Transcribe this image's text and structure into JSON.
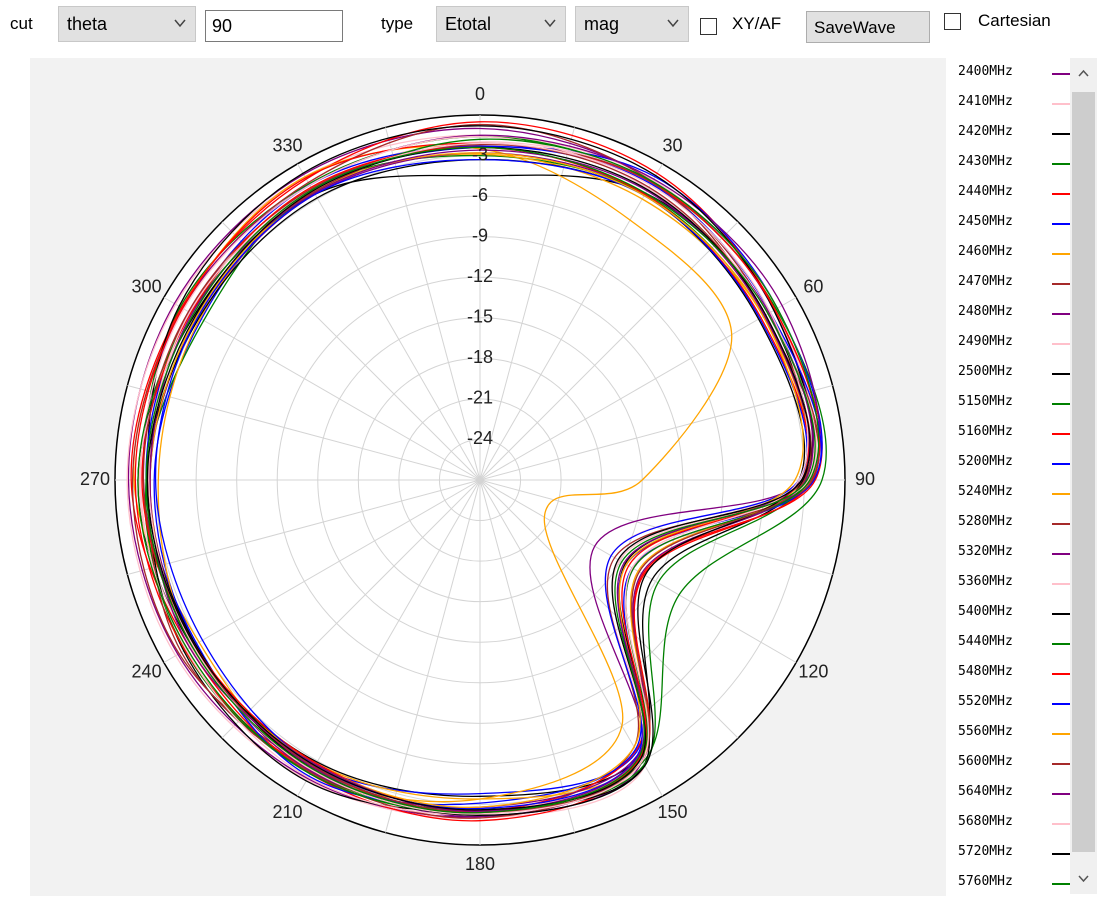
{
  "toolbar": {
    "cut_label": "cut",
    "cut_value": "theta",
    "angle_value": "90",
    "type_label": "type",
    "type_value": "Etotal",
    "scale_value": "mag",
    "xyaf_label": "XY/AF",
    "xyaf_checked": false,
    "savewave_label": "SaveWave",
    "cartesian_label": "Cartesian",
    "cartesian_checked": false
  },
  "colors": {
    "grid": "#d4d4d4",
    "background": "#f2f2f2",
    "plot_area": "#ffffff"
  },
  "chart_data": {
    "type": "polar-line",
    "title": "",
    "angle_ticks": [
      "0",
      "30",
      "60",
      "90",
      "120",
      "150",
      "180",
      "210",
      "240",
      "270",
      "300",
      "330"
    ],
    "radial_ticks": [
      "-3",
      "-6",
      "-9",
      "-12",
      "-15",
      "-18",
      "-21",
      "-24"
    ],
    "r_range": [
      -27,
      0
    ],
    "grid": true,
    "legend_position": "right",
    "series": [
      {
        "name": "2400MHz",
        "color": "#800080",
        "values": [
          -1.0,
          -1.4,
          -1.9,
          -3.2,
          -17.2,
          -3.0,
          -2.1,
          -1.5,
          -1.2,
          -1.0,
          -0.9,
          -0.9
        ]
      },
      {
        "name": "2410MHz",
        "color": "#ffc0cb",
        "values": [
          -1.5,
          -1.4,
          -1.8,
          -3.0,
          -15.8,
          -2.6,
          -2.0,
          -1.4,
          -1.0,
          -0.9,
          -1.0,
          -1.1
        ]
      },
      {
        "name": "2420MHz",
        "color": "#000000",
        "values": [
          -4.5,
          -2.5,
          -2.4,
          -3.1,
          -12.3,
          -3.4,
          -3.6,
          -2.9,
          -2.4,
          -1.7,
          -2.6,
          -2.6
        ]
      },
      {
        "name": "2430MHz",
        "color": "#008000",
        "values": [
          -1.6,
          -1.6,
          -1.7,
          -1.7,
          -10.0,
          -2.9,
          -2.6,
          -2.0,
          -1.8,
          -2.1,
          -1.4,
          -1.7
        ]
      },
      {
        "name": "2440MHz",
        "color": "#ff0000",
        "values": [
          -0.5,
          -0.8,
          -1.8,
          -2.2,
          -13.1,
          -3.0,
          -1.8,
          -1.9,
          -2.2,
          -1.2,
          -1.5,
          -1.3
        ]
      },
      {
        "name": "2450MHz",
        "color": "#0000ff",
        "values": [
          -2.4,
          -1.1,
          -1.6,
          -2.3,
          -14.0,
          -3.8,
          -3.8,
          -2.6,
          -2.7,
          -2.9,
          -3.2,
          -2.2
        ]
      },
      {
        "name": "2460MHz",
        "color": "#ffa500",
        "values": [
          -2.5,
          -4.8,
          -5.5,
          -15.0,
          -21.5,
          -6.0,
          -3.4,
          -2.1,
          -3.0,
          -1.4,
          -1.6,
          -1.1
        ]
      },
      {
        "name": "2470MHz",
        "color": "#a52a2a",
        "values": [
          -0.7,
          -1.5,
          -2.4,
          -2.5,
          -15.5,
          -4.2,
          -2.3,
          -2.4,
          -1.3,
          -1.3,
          -1.6,
          -1.6
        ]
      },
      {
        "name": "2480MHz",
        "color": "#800080",
        "values": [
          -1.5,
          -1.3,
          -1.2,
          -2.6,
          -13.9,
          -3.2,
          -2.1,
          -2.4,
          -2.6,
          -2.1,
          -1.6,
          -1.8
        ]
      },
      {
        "name": "2490MHz",
        "color": "#ffc0cb",
        "values": [
          -2.0,
          -1.5,
          -1.6,
          -2.6,
          -13.9,
          -3.4,
          -2.6,
          -2.6,
          -2.3,
          -1.8,
          -2.5,
          -2.1
        ]
      },
      {
        "name": "2500MHz",
        "color": "#000000",
        "values": [
          -0.8,
          -1.0,
          -1.9,
          -3.1,
          -14.6,
          -2.7,
          -2.6,
          -1.3,
          -1.7,
          -2.4,
          -1.3,
          -0.8
        ]
      },
      {
        "name": "5150MHz",
        "color": "#008000",
        "values": [
          -3.0,
          -2.6,
          -2.8,
          -2.9,
          -11.8,
          -2.7,
          -2.5,
          -1.9,
          -1.8,
          -2.3,
          -3.4,
          -2.2
        ]
      },
      {
        "name": "5160MHz",
        "color": "#ff0000",
        "values": [
          -2.1,
          -1.6,
          -1.8,
          -2.4,
          -13.0,
          -3.9,
          -2.5,
          -2.1,
          -1.8,
          -1.5,
          -1.6,
          -1.2
        ]
      },
      {
        "name": "5200MHz",
        "color": "#0000ff",
        "values": [
          -2.3,
          -1.7,
          -2.2,
          -2.3,
          -14.5,
          -4.0,
          -3.1,
          -1.7,
          -2.8,
          -2.3,
          -2.2,
          -1.8
        ]
      },
      {
        "name": "5240MHz",
        "color": "#ffa500",
        "values": [
          -2.9,
          -3.0,
          -2.8,
          -3.2,
          -13.5,
          -3.2,
          -3.4,
          -2.8,
          -2.5,
          -3.2,
          -3.1,
          -2.4
        ]
      },
      {
        "name": "5280MHz",
        "color": "#a52a2a",
        "values": [
          -2.2,
          -1.6,
          -2.7,
          -2.4,
          -14.5,
          -3.4,
          -2.0,
          -2.0,
          -1.5,
          -2.5,
          -2.1,
          -2.1
        ]
      },
      {
        "name": "5320MHz",
        "color": "#800080",
        "values": [
          -2.8,
          -2.5,
          -2.3,
          -2.9,
          -13.2,
          -3.6,
          -2.8,
          -2.1,
          -2.6,
          -2.6,
          -2.9,
          -2.6
        ]
      },
      {
        "name": "5360MHz",
        "color": "#ffc0cb",
        "values": [
          -1.6,
          -2.1,
          -2.4,
          -2.7,
          -15.1,
          -3.5,
          -2.3,
          -1.6,
          -1.9,
          -1.9,
          -1.7,
          -1.8
        ]
      },
      {
        "name": "5400MHz",
        "color": "#000000",
        "values": [
          -3.3,
          -2.7,
          -3.2,
          -3.4,
          -12.9,
          -2.6,
          -2.2,
          -2.3,
          -2.7,
          -2.4,
          -3.0,
          -2.9
        ]
      },
      {
        "name": "5440MHz",
        "color": "#008000",
        "values": [
          -1.8,
          -1.5,
          -1.6,
          -2.6,
          -13.9,
          -3.2,
          -2.4,
          -1.9,
          -2.0,
          -1.7,
          -2.3,
          -2.5
        ]
      },
      {
        "name": "5480MHz",
        "color": "#ff0000",
        "values": [
          -2.4,
          -2.6,
          -3.0,
          -3.2,
          -14.3,
          -3.3,
          -2.5,
          -2.8,
          -2.6,
          -2.0,
          -2.3,
          -2.0
        ]
      },
      {
        "name": "5520MHz",
        "color": "#0000ff",
        "values": [
          -3.3,
          -2.7,
          -3.1,
          -3.4,
          -15.8,
          -3.6,
          -2.7,
          -2.6,
          -3.3,
          -3.0,
          -2.9,
          -2.6
        ]
      },
      {
        "name": "5560MHz",
        "color": "#ffa500",
        "values": [
          -2.8,
          -2.7,
          -2.8,
          -3.7,
          -14.5,
          -4.2,
          -2.8,
          -2.7,
          -2.5,
          -2.6,
          -2.8,
          -2.4
        ]
      },
      {
        "name": "5600MHz",
        "color": "#a52a2a",
        "values": [
          -2.1,
          -2.0,
          -2.6,
          -3.0,
          -13.4,
          -3.0,
          -2.4,
          -2.5,
          -2.5,
          -2.1,
          -2.1,
          -2.4
        ]
      },
      {
        "name": "5640MHz",
        "color": "#800080",
        "values": [
          -2.6,
          -2.3,
          -2.7,
          -3.2,
          -14.7,
          -3.5,
          -2.5,
          -2.7,
          -2.2,
          -2.6,
          -2.4,
          -2.5
        ]
      },
      {
        "name": "5680MHz",
        "color": "#ffc0cb",
        "values": [
          -2.1,
          -1.8,
          -2.2,
          -3.4,
          -14.0,
          -3.0,
          -2.3,
          -2.2,
          -2.5,
          -2.5,
          -2.2,
          -2.3
        ]
      },
      {
        "name": "5720MHz",
        "color": "#000000",
        "values": [
          -2.4,
          -2.2,
          -2.6,
          -3.2,
          -15.2,
          -3.2,
          -2.6,
          -2.6,
          -2.6,
          -2.4,
          -2.7,
          -2.3
        ]
      },
      {
        "name": "5760MHz",
        "color": "#008000",
        "values": [
          -2.4,
          -2.5,
          -2.4,
          -2.8,
          -14.9,
          -3.4,
          -2.4,
          -2.3,
          -2.4,
          -2.3,
          -2.5,
          -2.2
        ]
      }
    ]
  }
}
